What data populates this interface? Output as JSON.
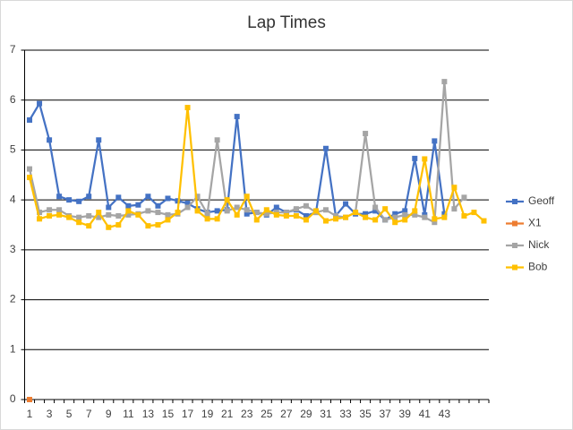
{
  "chart_data": {
    "type": "line",
    "title": "Lap Times",
    "categories": [
      "1",
      null,
      "3",
      null,
      "5",
      null,
      "7",
      null,
      "9",
      null,
      "11",
      null,
      "13",
      null,
      "15",
      null,
      "17",
      null,
      "19",
      null,
      "21",
      null,
      "23",
      null,
      "25",
      null,
      "27",
      null,
      "29",
      null,
      "31",
      null,
      "33",
      null,
      "35",
      null,
      "37",
      null,
      "39",
      null,
      "41",
      null,
      "43",
      null,
      null,
      null,
      null
    ],
    "series": [
      {
        "name": "Geoff",
        "color": "#4472c4",
        "values": [
          5.6,
          5.93,
          5.2,
          4.07,
          4.0,
          3.97,
          4.07,
          5.2,
          3.85,
          4.05,
          3.88,
          3.9,
          4.07,
          3.88,
          4.03,
          3.98,
          3.93,
          3.82,
          3.75,
          3.78,
          3.8,
          5.67,
          3.72,
          3.75,
          3.7,
          3.85,
          3.75,
          3.8,
          3.68,
          3.75,
          5.03,
          3.68,
          3.92,
          3.72,
          3.72,
          3.78,
          3.6,
          3.72,
          3.78,
          4.83,
          3.7,
          5.18,
          3.72,
          null,
          null,
          null,
          null
        ]
      },
      {
        "name": "X1",
        "color": "#ed7d31",
        "values": [
          0,
          null,
          null,
          null,
          null,
          null,
          null,
          null,
          null,
          null,
          null,
          null,
          null,
          null,
          null,
          null,
          null,
          null,
          null,
          null,
          null,
          null,
          null,
          null,
          null,
          null,
          null,
          null,
          null,
          null,
          null,
          null,
          null,
          null,
          null,
          null,
          null,
          null,
          null,
          null,
          null,
          null,
          null,
          null,
          null,
          null,
          null
        ]
      },
      {
        "name": "Nick",
        "color": "#a5a5a5",
        "values": [
          4.62,
          3.75,
          3.8,
          3.8,
          3.68,
          3.65,
          3.68,
          3.65,
          3.7,
          3.68,
          3.7,
          3.72,
          3.78,
          3.75,
          3.7,
          3.72,
          3.85,
          4.07,
          3.72,
          5.2,
          3.78,
          3.85,
          3.8,
          3.75,
          3.72,
          3.75,
          3.75,
          3.82,
          3.88,
          3.75,
          3.8,
          3.68,
          3.65,
          3.75,
          5.33,
          3.85,
          3.6,
          3.65,
          3.7,
          3.7,
          3.65,
          3.55,
          6.37,
          3.82,
          4.05,
          null,
          null
        ]
      },
      {
        "name": "Bob",
        "color": "#ffc000",
        "values": [
          4.45,
          3.62,
          3.68,
          3.7,
          3.65,
          3.55,
          3.48,
          3.75,
          3.45,
          3.5,
          3.78,
          3.7,
          3.48,
          3.5,
          3.6,
          3.75,
          5.85,
          3.78,
          3.62,
          3.62,
          4.0,
          3.7,
          4.07,
          3.6,
          3.8,
          3.7,
          3.68,
          3.68,
          3.6,
          3.78,
          3.58,
          3.62,
          3.65,
          3.75,
          3.65,
          3.6,
          3.82,
          3.55,
          3.6,
          3.78,
          4.82,
          3.62,
          3.65,
          4.25,
          3.68,
          3.75,
          3.58
        ]
      }
    ],
    "ylim": [
      0,
      7
    ],
    "yticks": [
      0,
      1,
      2,
      3,
      4,
      5,
      6,
      7
    ],
    "grid": true,
    "legend": "right"
  }
}
